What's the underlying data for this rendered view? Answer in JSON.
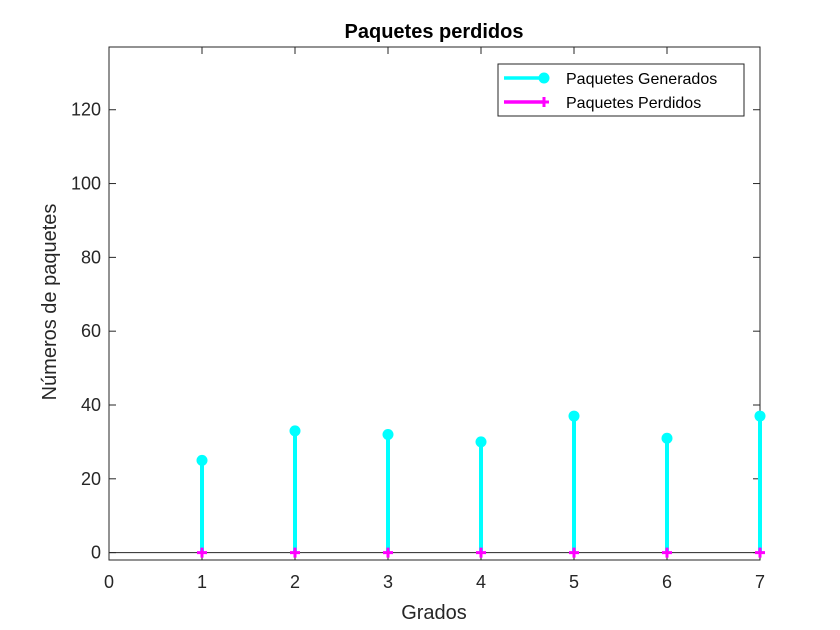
{
  "chart_data": {
    "type": "stem",
    "title": "Paquetes perdidos",
    "xlabel": "Grados",
    "ylabel": "Números de paquetes",
    "xlim": [
      0,
      7
    ],
    "ylim": [
      -2,
      137
    ],
    "xticks": [
      0,
      1,
      2,
      3,
      4,
      5,
      6,
      7
    ],
    "yticks": [
      0,
      20,
      40,
      60,
      80,
      100,
      120
    ],
    "x": [
      1,
      2,
      3,
      4,
      5,
      6,
      7
    ],
    "series": [
      {
        "name": "Paquetes Generados",
        "values": [
          25,
          33,
          32,
          30,
          37,
          31,
          37
        ],
        "color": "#00FFFF",
        "marker": "circle"
      },
      {
        "name": "Paquetes Perdidos",
        "values": [
          0,
          0,
          0,
          0,
          0,
          0,
          0
        ],
        "color": "#FF00FF",
        "marker": "plus"
      }
    ],
    "legend": "top-right",
    "grid": false
  }
}
